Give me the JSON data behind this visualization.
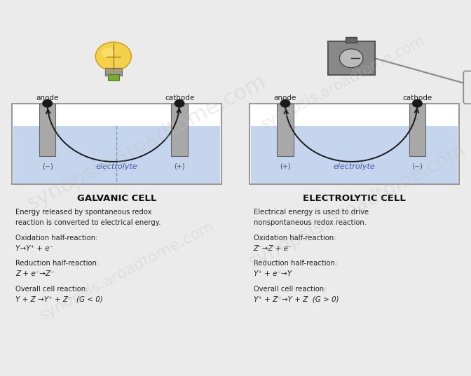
{
  "bg_color": "#ebebeb",
  "galvanic_title": "GALVANIC CELL",
  "electrolytic_title": "ELECTROLYTIC CELL",
  "galvanic_desc1": "Energy released by spontaneous redox",
  "galvanic_desc2": "reaction is converted to electrical energy.",
  "electrolytic_desc1": "Electrical energy is used to drive",
  "electrolytic_desc2": "nonspontaneous redox reaction.",
  "galvanic_ox_label": "Oxidation half-reaction:",
  "galvanic_ox_eq": "Y→Y⁺ + e⁻",
  "galvanic_red_label": "Reduction half-reaction:",
  "galvanic_red_eq": "Z + e⁻→Z⁻",
  "galvanic_overall_label": "Overall cell reaction:",
  "galvanic_overall_eq": "Y + Z →Y⁺ + Z⁻  (G < 0)",
  "electrolytic_ox_label": "Oxidation half-reaction:",
  "electrolytic_ox_eq": "Z⁻→Z + e⁻",
  "electrolytic_red_label": "Reduction half-reaction:",
  "electrolytic_red_eq": "Y⁺ + e⁻→Y",
  "electrolytic_overall_label": "Overall cell reaction:",
  "electrolytic_overall_eq": "Y⁺ + Z⁻→Y + Z  (G > 0)",
  "electrolyte_color": "#c5d5ee",
  "electrode_color": "#a8a8a8",
  "cell_bg": "#ffffff",
  "cell_border_color": "#999999",
  "text_color": "#222222",
  "anode_label_galvanic": "anode",
  "cathode_label_galvanic": "cathode",
  "anode_label_electrolytic": "anode",
  "cathode_label_electrolytic": "cathode",
  "galvanic_anode_sign": "(−)",
  "galvanic_cathode_sign": "(+)",
  "electrolytic_anode_sign": "(+)",
  "electrolytic_cathode_sign": "(−)",
  "watermark": "synopsis.aroadtome.com"
}
